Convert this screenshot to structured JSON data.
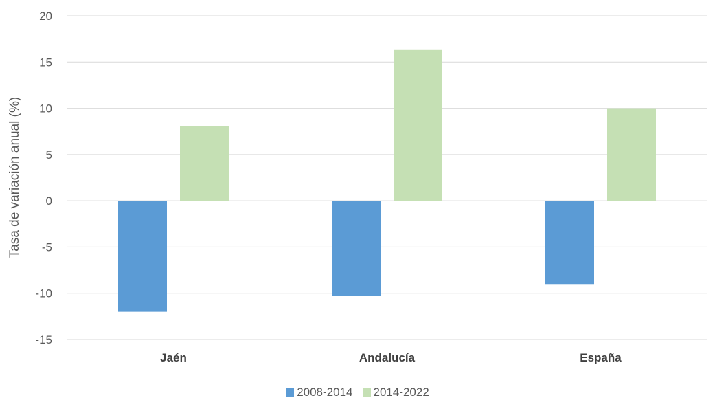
{
  "chart_data": {
    "type": "bar",
    "categories": [
      "Jaén",
      "Andalucía",
      "España"
    ],
    "series": [
      {
        "name": "2008-2014",
        "values": [
          -12.0,
          -10.3,
          -9.0
        ],
        "color": "#5b9bd5"
      },
      {
        "name": "2014-2022",
        "values": [
          8.1,
          16.3,
          10.0
        ],
        "color": "#c5e0b4"
      }
    ],
    "ylabel": "Tasa de variación anual (%)",
    "xlabel": "",
    "ylim": [
      -15,
      20
    ],
    "yticks": [
      20,
      15,
      10,
      5,
      0,
      -5,
      -10,
      -15
    ],
    "grid": true,
    "legend_position": "bottom"
  }
}
